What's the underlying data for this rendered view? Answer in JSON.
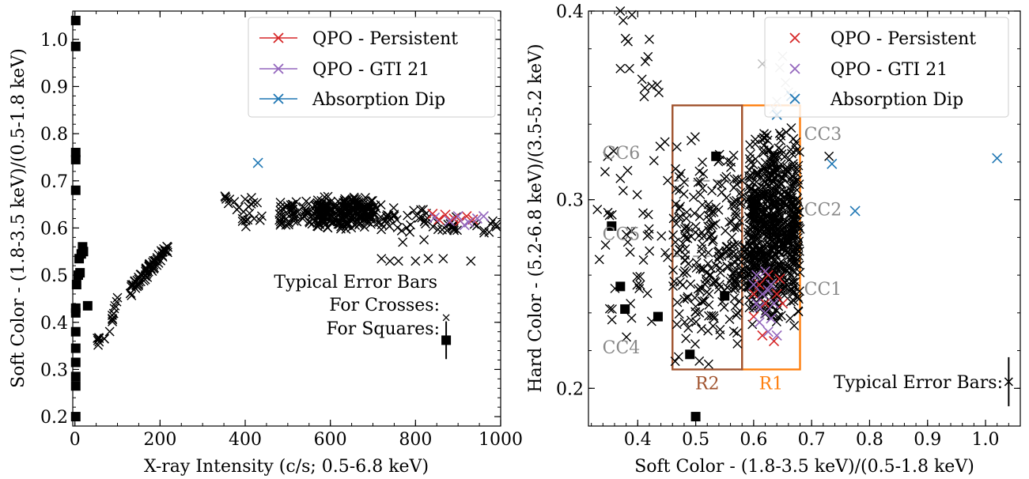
{
  "chart_data": [
    {
      "type": "scatter",
      "xlabel": "X-ray Intensity (c/s; 0.5-6.8 keV)",
      "ylabel": "Soft Color - (1.8-3.5 keV)/(0.5-1.8 keV)",
      "xlim": [
        -5,
        1000
      ],
      "ylim": [
        0.18,
        1.06
      ],
      "xticks": [
        0,
        200,
        400,
        600,
        800,
        1000
      ],
      "yticks": [
        0.2,
        0.3,
        0.4,
        0.5,
        0.6,
        0.7,
        0.8,
        0.9,
        1.0
      ],
      "xtick_labels": [
        "0",
        "200",
        "400",
        "600",
        "800",
        "1000"
      ],
      "ytick_labels": [
        "0.2",
        "0.3",
        "0.4",
        "0.5",
        "0.6",
        "0.7",
        "0.8",
        "0.9",
        "1.0"
      ],
      "legend": {
        "placement": "top-right",
        "entries": [
          {
            "label": "QPO - Persistent",
            "color": "#d62728"
          },
          {
            "label": "QPO - GTI 21",
            "color": "#9467bd"
          },
          {
            "label": "Absorption Dip",
            "color": "#1f77b4"
          }
        ]
      },
      "error_bar_note": {
        "title": "Typical Error Bars",
        "crosses_label": "For Crosses:",
        "squares_label": "For Squares:",
        "cross_point": [
          872,
          0.41
        ],
        "square_point": [
          872,
          0.362
        ],
        "square_yerr": 0.04
      },
      "squares": [
        [
          2,
          1.04
        ],
        [
          2,
          0.985
        ],
        [
          2,
          0.76
        ],
        [
          2,
          0.745
        ],
        [
          2,
          0.68
        ],
        [
          2,
          0.43
        ],
        [
          2,
          0.42
        ],
        [
          2,
          0.38
        ],
        [
          2,
          0.345
        ],
        [
          2,
          0.315
        ],
        [
          2,
          0.285
        ],
        [
          2,
          0.265
        ],
        [
          2,
          0.2
        ],
        [
          4,
          0.48
        ],
        [
          8,
          0.5
        ],
        [
          10,
          0.535
        ],
        [
          12,
          0.505
        ],
        [
          15,
          0.545
        ],
        [
          18,
          0.56
        ],
        [
          20,
          0.55
        ],
        [
          30,
          0.435
        ]
      ],
      "series": [
        {
          "name": "QPO - Persistent",
          "marker": "x",
          "color": "#d62728",
          "points": [
            [
              840,
              0.63
            ],
            [
              855,
              0.618
            ],
            [
              870,
              0.628
            ],
            [
              890,
              0.62
            ],
            [
              905,
              0.615
            ],
            [
              920,
              0.625
            ],
            [
              935,
              0.618
            ]
          ]
        },
        {
          "name": "QPO - GTI 21",
          "marker": "x",
          "color": "#9467bd",
          "points": [
            [
              845,
              0.622
            ],
            [
              880,
              0.615
            ],
            [
              900,
              0.625
            ],
            [
              925,
              0.612
            ],
            [
              945,
              0.62
            ],
            [
              960,
              0.625
            ],
            [
              915,
              0.606
            ]
          ]
        },
        {
          "name": "Absorption Dip",
          "marker": "x",
          "color": "#1f77b4",
          "points": [
            [
              430,
              0.738
            ]
          ]
        }
      ],
      "crosses_clusters": [
        {
          "x": [
            47,
            72
          ],
          "y": [
            0.345,
            0.385
          ],
          "n": 8,
          "trend": 0
        },
        {
          "x": [
            80,
            100
          ],
          "y": [
            0.38,
            0.455
          ],
          "n": 10,
          "trend": 1
        },
        {
          "x": [
            130,
            220
          ],
          "y": [
            0.465,
            0.56
          ],
          "n": 70,
          "trend": 1
        },
        {
          "x": [
            345,
            375
          ],
          "y": [
            0.65,
            0.675
          ],
          "n": 6,
          "trend": 0
        },
        {
          "x": [
            380,
            440
          ],
          "y": [
            0.595,
            0.675
          ],
          "n": 18,
          "trend": 0
        },
        {
          "x": [
            480,
            560
          ],
          "y": [
            0.6,
            0.665
          ],
          "n": 50,
          "trend": 0
        },
        {
          "x": [
            560,
            700
          ],
          "y": [
            0.595,
            0.67
          ],
          "n": 220,
          "trend": 0
        },
        {
          "x": [
            700,
            830
          ],
          "y": [
            0.59,
            0.65
          ],
          "n": 40,
          "trend": 0
        },
        {
          "x": [
            840,
            1000
          ],
          "y": [
            0.585,
            0.63
          ],
          "n": 25,
          "trend": 0
        }
      ],
      "crosses_extra": [
        [
          720,
          0.535
        ],
        [
          740,
          0.53
        ],
        [
          760,
          0.53
        ],
        [
          800,
          0.53
        ],
        [
          830,
          0.535
        ],
        [
          865,
          0.535
        ],
        [
          930,
          0.53
        ],
        [
          770,
          0.57
        ],
        [
          820,
          0.575
        ]
      ]
    },
    {
      "type": "scatter",
      "xlabel": "Soft Color - (1.8-3.5 keV)/(0.5-1.8 keV)",
      "ylabel": "Hard Color - (5.2-6.8 keV)/(3.5-5.2 keV)",
      "xlim": [
        0.315,
        1.06
      ],
      "ylim": [
        0.18,
        0.4
      ],
      "xticks": [
        0.4,
        0.5,
        0.6,
        0.7,
        0.8,
        0.9,
        1.0
      ],
      "yticks": [
        0.2,
        0.3,
        0.4
      ],
      "xtick_labels": [
        "0.4",
        "0.5",
        "0.6",
        "0.7",
        "0.8",
        "0.9",
        "1.0"
      ],
      "ytick_labels": [
        "0.2",
        "0.3",
        "0.4"
      ],
      "legend": {
        "placement": "top-right",
        "entries": [
          {
            "label": "QPO - Persistent",
            "color": "#d62728"
          },
          {
            "label": "QPO - GTI 21",
            "color": "#9467bd"
          },
          {
            "label": "Absorption Dip",
            "color": "#1f77b4"
          }
        ]
      },
      "error_bar_note": {
        "title": "Typical Error Bars:",
        "point": [
          1.04,
          0.2035
        ],
        "yerr": 0.013
      },
      "regions": [
        {
          "label": "R1",
          "x": [
            0.58,
            0.68
          ],
          "y": [
            0.21,
            0.35
          ],
          "color": "#ff7f0e"
        },
        {
          "label": "R2",
          "x": [
            0.46,
            0.58
          ],
          "y": [
            0.21,
            0.35
          ],
          "color": "#a0522d"
        }
      ],
      "dividers": [
        0.31,
        0.27
      ],
      "color_classes": [
        {
          "label": "CC1",
          "at": [
            0.687,
            0.253
          ]
        },
        {
          "label": "CC2",
          "at": [
            0.687,
            0.295
          ]
        },
        {
          "label": "CC3",
          "at": [
            0.687,
            0.335
          ]
        },
        {
          "label": "CC4",
          "at": [
            0.38,
            0.222
          ]
        },
        {
          "label": "CC5",
          "at": [
            0.38,
            0.282
          ]
        },
        {
          "label": "CC6",
          "at": [
            0.38,
            0.325
          ]
        }
      ],
      "squares": [
        [
          0.355,
          0.286
        ],
        [
          0.37,
          0.254
        ],
        [
          0.378,
          0.242
        ],
        [
          0.435,
          0.238
        ],
        [
          0.49,
          0.218
        ],
        [
          0.5,
          0.185
        ],
        [
          0.535,
          0.323
        ],
        [
          0.55,
          0.249
        ]
      ],
      "series": [
        {
          "name": "QPO - Persistent",
          "marker": "x",
          "color": "#d62728",
          "points": [
            [
              0.6,
              0.238
            ],
            [
              0.61,
              0.255
            ],
            [
              0.625,
              0.26
            ],
            [
              0.64,
              0.25
            ],
            [
              0.65,
              0.245
            ],
            [
              0.615,
              0.228
            ],
            [
              0.635,
              0.225
            ],
            [
              0.62,
              0.245
            ],
            [
              0.6,
              0.25
            ],
            [
              0.645,
              0.258
            ]
          ]
        },
        {
          "name": "QPO - GTI 21",
          "marker": "x",
          "color": "#9467bd",
          "points": [
            [
              0.6,
              0.255
            ],
            [
              0.605,
              0.245
            ],
            [
              0.61,
              0.235
            ],
            [
              0.615,
              0.25
            ],
            [
              0.62,
              0.24
            ],
            [
              0.625,
              0.23
            ],
            [
              0.63,
              0.255
            ],
            [
              0.635,
              0.245
            ],
            [
              0.605,
              0.26
            ],
            [
              0.62,
              0.262
            ],
            [
              0.63,
              0.237
            ],
            [
              0.64,
              0.228
            ],
            [
              0.61,
              0.243
            ],
            [
              0.625,
              0.252
            ]
          ]
        },
        {
          "name": "Absorption Dip",
          "marker": "x",
          "color": "#1f77b4",
          "points": [
            [
              0.735,
              0.319
            ],
            [
              0.775,
              0.294
            ],
            [
              1.02,
              0.322
            ],
            [
              0.665,
              0.355
            ],
            [
              0.64,
              0.345
            ]
          ]
        }
      ],
      "faded_points": [
        [
          0.615,
          0.372
        ],
        [
          0.645,
          0.37
        ],
        [
          0.65,
          0.376
        ],
        [
          0.655,
          0.362
        ],
        [
          0.66,
          0.357
        ],
        [
          0.64,
          0.352
        ],
        [
          0.635,
          0.348
        ],
        [
          0.67,
          0.352
        ]
      ],
      "crosses_clusters": [
        {
          "x": [
            0.59,
            0.68
          ],
          "y": [
            0.23,
            0.34
          ],
          "n": 650,
          "trend": 0
        },
        {
          "x": [
            0.56,
            0.62
          ],
          "y": [
            0.23,
            0.3
          ],
          "n": 60,
          "trend": 0
        },
        {
          "x": [
            0.46,
            0.58
          ],
          "y": [
            0.21,
            0.34
          ],
          "n": 220,
          "trend": 0
        },
        {
          "x": [
            0.33,
            0.46
          ],
          "y": [
            0.215,
            0.34
          ],
          "n": 45,
          "trend": 0
        },
        {
          "x": [
            0.37,
            0.44
          ],
          "y": [
            0.34,
            0.4
          ],
          "n": 12,
          "trend": 0
        }
      ],
      "crosses_extra": [
        [
          0.37,
          0.4
        ],
        [
          0.375,
          0.395
        ],
        [
          0.39,
          0.398
        ],
        [
          0.42,
          0.385
        ],
        [
          0.73,
          0.323
        ]
      ]
    }
  ]
}
